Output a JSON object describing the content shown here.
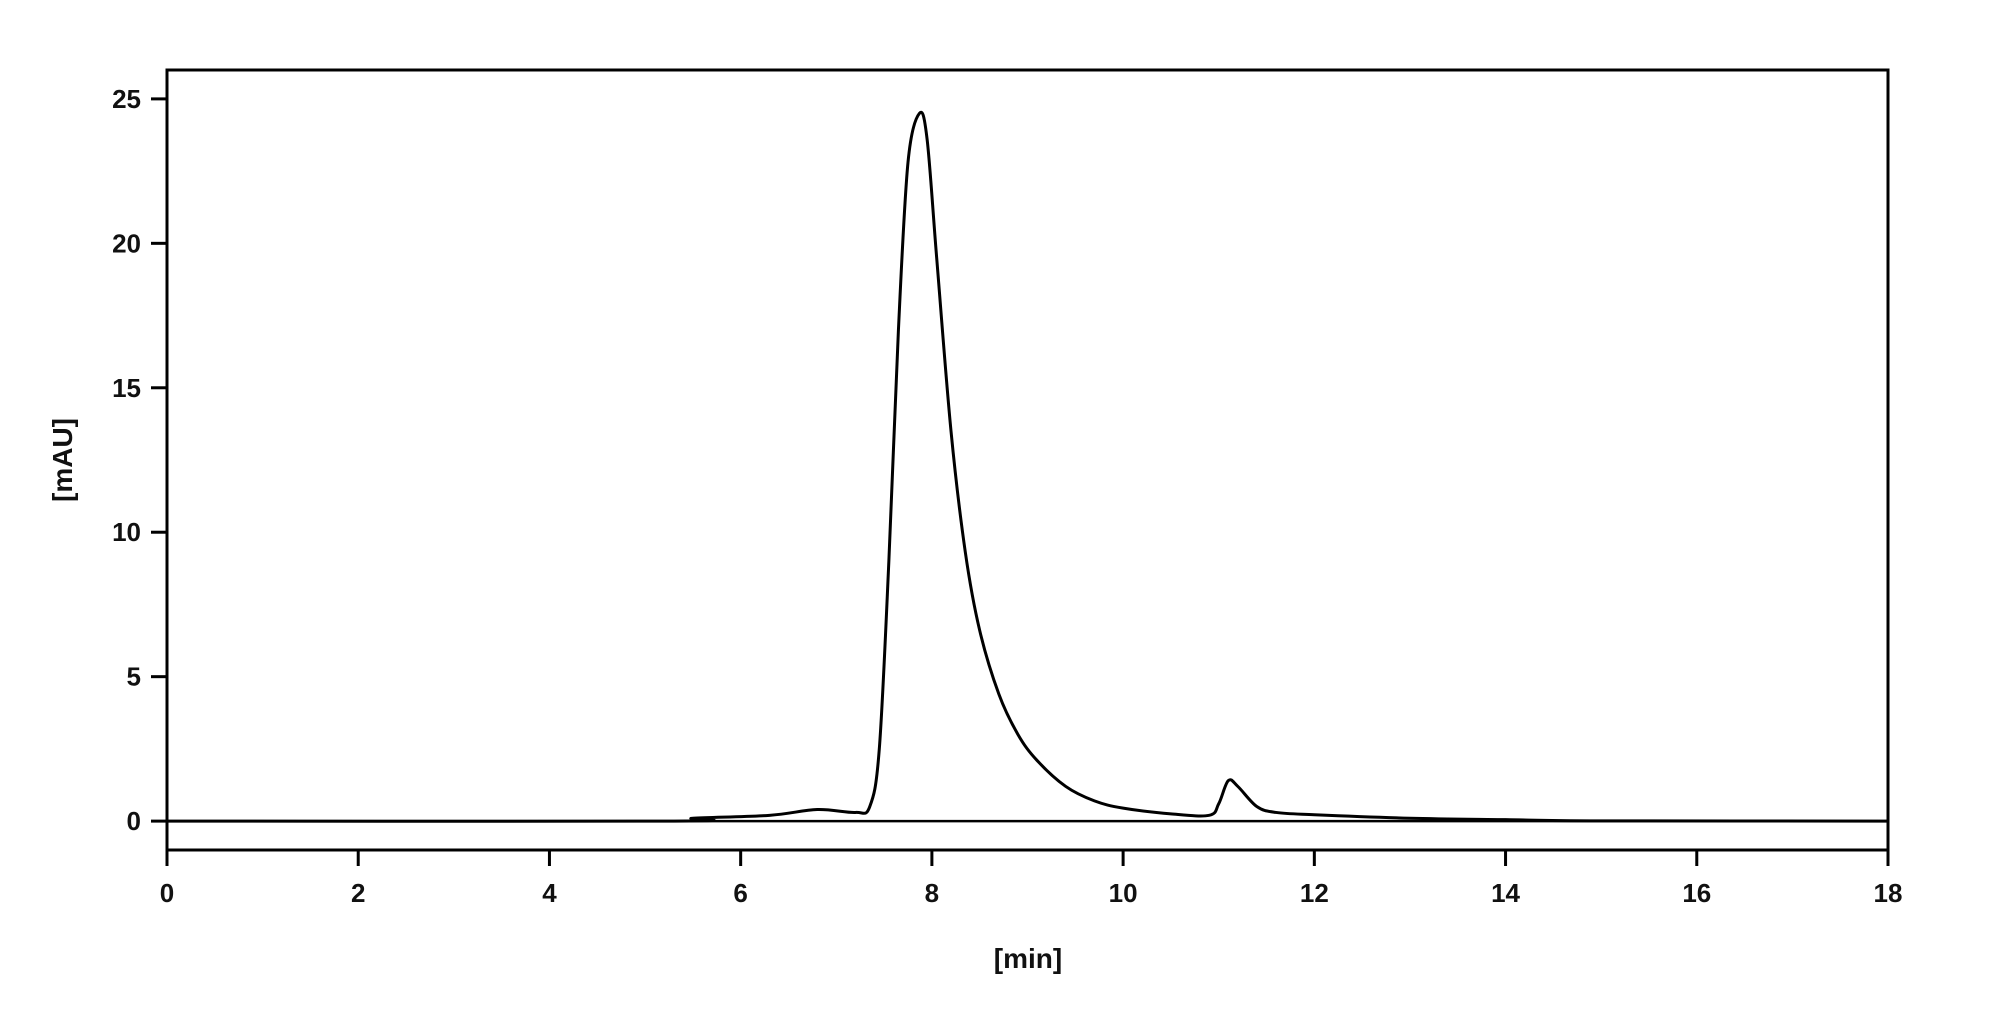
{
  "chart_data": {
    "type": "line",
    "title": "",
    "xlabel": "[min]",
    "ylabel": "[mAU]",
    "xlim": [
      0,
      18
    ],
    "ylim": [
      -1,
      26
    ],
    "xticks": [
      0,
      2,
      4,
      6,
      8,
      10,
      12,
      14,
      16,
      18
    ],
    "yticks": [
      0,
      5,
      10,
      15,
      20,
      25
    ],
    "grid": false,
    "line_color": "#000000",
    "series": [
      {
        "x": [
          0,
          5.3,
          5.5,
          6.3,
          6.8,
          7.2,
          7.35,
          7.45,
          7.55,
          7.65,
          7.75,
          7.87,
          7.95,
          8.05,
          8.2,
          8.35,
          8.5,
          8.7,
          8.9,
          9.1,
          9.4,
          9.7,
          10.0,
          10.5,
          10.9,
          11.0,
          11.1,
          11.2,
          11.4,
          11.6,
          12.0,
          13.0,
          14.0,
          15.0,
          18.0
        ],
        "y": [
          0,
          0,
          0.1,
          0.2,
          0.4,
          0.3,
          0.5,
          2.5,
          9,
          17,
          22.8,
          24.5,
          23.6,
          19.5,
          13.5,
          9.3,
          6.6,
          4.4,
          3.0,
          2.1,
          1.2,
          0.7,
          0.45,
          0.25,
          0.2,
          0.6,
          1.4,
          1.2,
          0.5,
          0.3,
          0.22,
          0.1,
          0.05,
          0.01,
          0
        ]
      }
    ]
  }
}
